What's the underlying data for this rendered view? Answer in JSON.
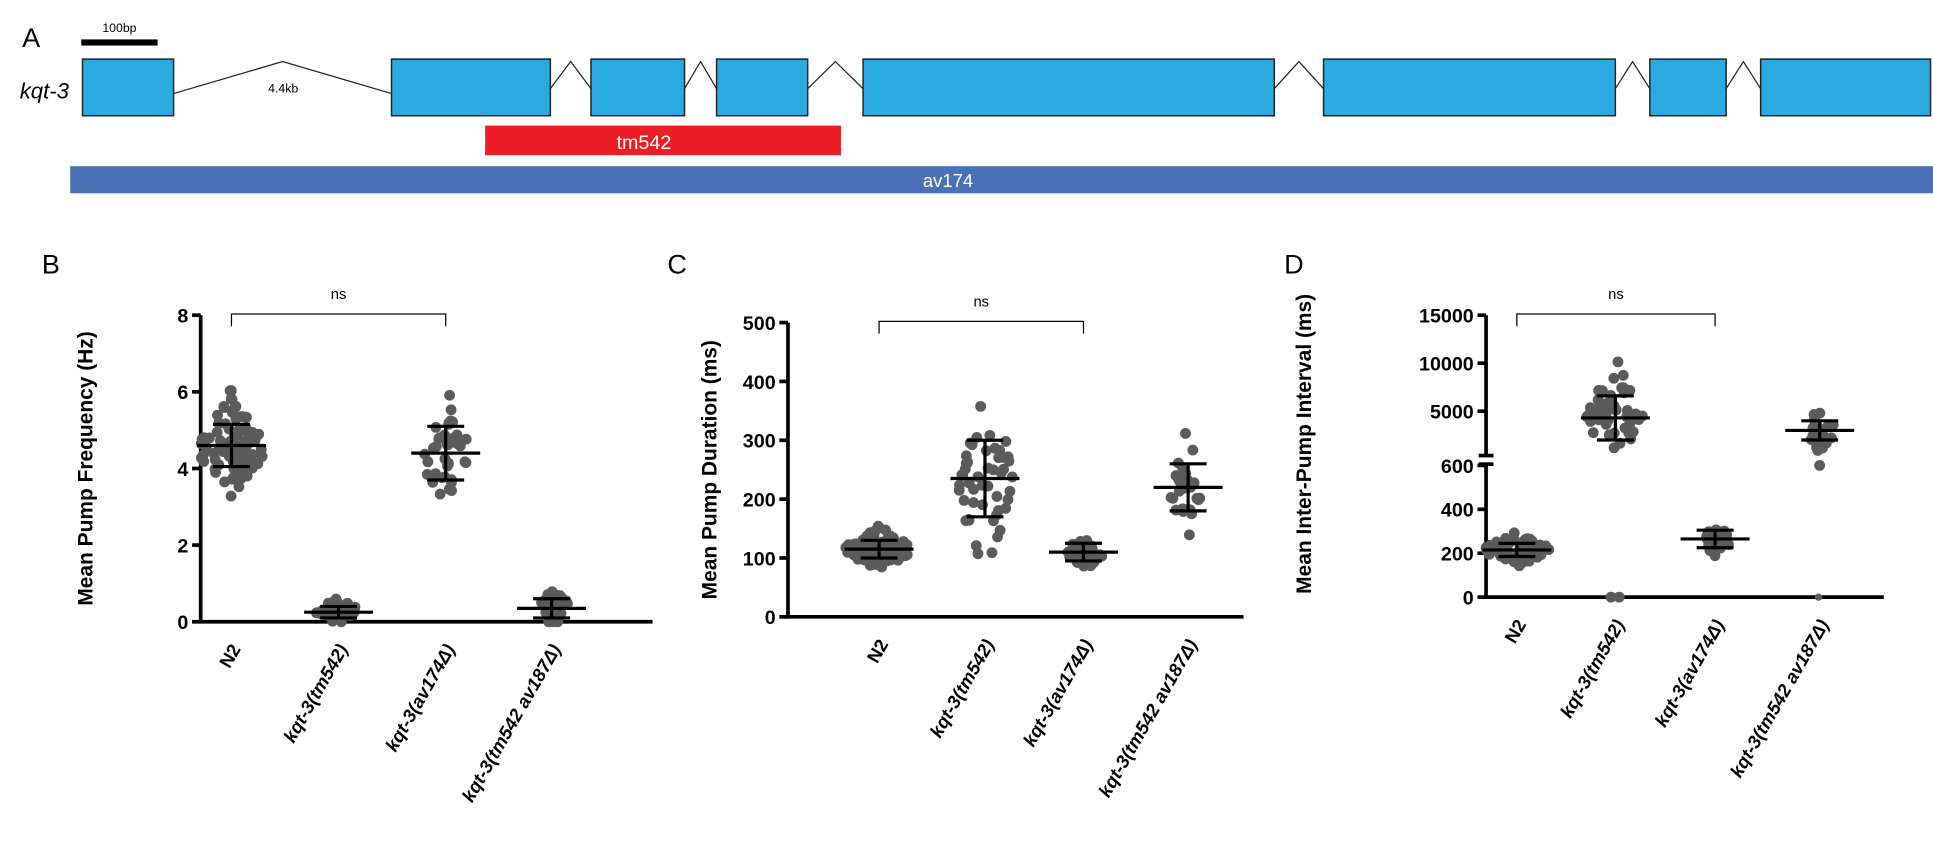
{
  "gene_model": {
    "panel_label": "A",
    "gene": "kqt-3",
    "scale_bar": "100bp",
    "intron_label": "4.4kb",
    "exon_color": "#29abe2",
    "deletions": [
      {
        "label": "tm542",
        "color": "#ee1c25"
      },
      {
        "label": "av174",
        "color": "#4a70b8"
      }
    ]
  },
  "colors": {
    "points": "#5b5b5b",
    "bars": "#000000"
  },
  "chart_data": [
    {
      "panel": "B",
      "type": "scatter",
      "ylabel": "Mean Pump Frequency (Hz)",
      "ylim": [
        0,
        8
      ],
      "yticks": [
        "0",
        "2",
        "4",
        "6",
        "8"
      ],
      "categories": [
        "N2",
        "kqt-3(tm542)",
        "kqt-3(av174Δ)",
        "kqt-3(tm542 av187Δ)"
      ],
      "groups": [
        {
          "mean": 4.6,
          "sd": 0.55,
          "n": 90
        },
        {
          "mean": 0.25,
          "sd": 0.15,
          "n": 40
        },
        {
          "mean": 4.4,
          "sd": 0.7,
          "n": 40
        },
        {
          "mean": 0.35,
          "sd": 0.25,
          "n": 25
        }
      ],
      "annotation": {
        "text": "ns",
        "from": 0,
        "to": 2
      }
    },
    {
      "panel": "C",
      "type": "scatter",
      "ylabel": "Mean Pump Duration (ms)",
      "ylim": [
        0,
        500
      ],
      "yticks": [
        "0",
        "100",
        "200",
        "300",
        "400",
        "500"
      ],
      "categories": [
        "N2",
        "kqt-3(tm542)",
        "kqt-3(av174Δ)",
        "kqt-3(tm542 av187Δ)"
      ],
      "groups": [
        {
          "mean": 115,
          "sd": 15,
          "n": 90
        },
        {
          "mean": 235,
          "sd": 65,
          "n": 50
        },
        {
          "mean": 110,
          "sd": 15,
          "n": 30
        },
        {
          "mean": 220,
          "sd": 40,
          "n": 25
        }
      ],
      "annotation": {
        "text": "ns",
        "from": 0,
        "to": 2
      }
    },
    {
      "panel": "D",
      "type": "scatter",
      "ylabel": "Mean Inter-Pump Interval (ms)",
      "ylim": [
        0,
        15000
      ],
      "axis_break": [
        600,
        5000
      ],
      "yticks": [
        "0",
        "200",
        "400",
        "600",
        "5000",
        "10000",
        "15000"
      ],
      "categories": [
        "N2",
        "kqt-3(tm542)",
        "kqt-3(av174Δ)",
        "kqt-3(tm542 av187Δ)"
      ],
      "groups": [
        {
          "mean": 215,
          "sd": 30,
          "n": 60
        },
        {
          "mean": 4300,
          "sd": 2300,
          "n": 50
        },
        {
          "mean": 265,
          "sd": 40,
          "n": 20
        },
        {
          "mean": 3000,
          "sd": 1000,
          "n": 25
        }
      ],
      "annotation": {
        "text": "ns",
        "from": 0,
        "to": 2
      }
    }
  ]
}
